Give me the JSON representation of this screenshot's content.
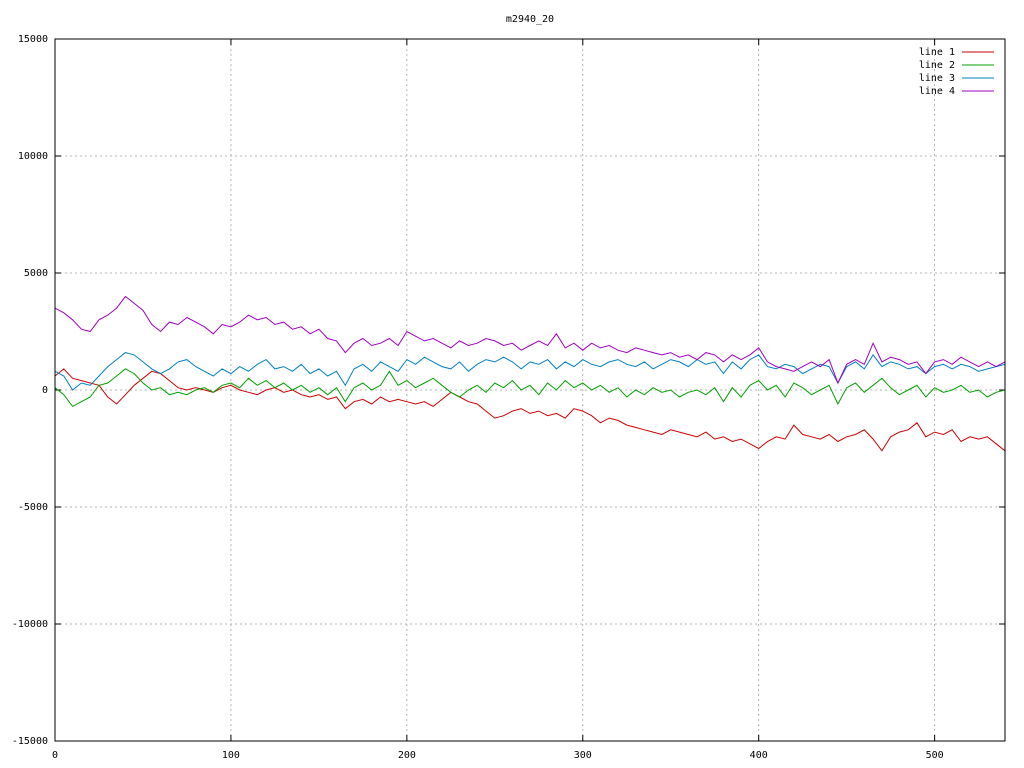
{
  "chart_data": {
    "type": "line",
    "title": "m2940_20",
    "xlim": [
      0,
      540
    ],
    "ylim": [
      -15000,
      15000
    ],
    "x_ticks": [
      0,
      100,
      200,
      300,
      400,
      500
    ],
    "y_ticks": [
      -15000,
      -10000,
      -5000,
      0,
      5000,
      10000,
      15000
    ],
    "x_tick_labels": [
      "0",
      "100",
      "200",
      "300",
      "400",
      "500"
    ],
    "y_tick_labels": [
      "-15000",
      "-10000",
      "-5000",
      "0",
      "5000",
      "10000",
      "15000"
    ],
    "grid": true,
    "legend_position": "top-right",
    "series": [
      {
        "name": "line 1",
        "color": "#cc0000",
        "x": [
          0,
          5,
          10,
          15,
          20,
          25,
          30,
          35,
          40,
          45,
          50,
          55,
          60,
          65,
          70,
          75,
          80,
          85,
          90,
          95,
          100,
          105,
          110,
          115,
          120,
          125,
          130,
          135,
          140,
          145,
          150,
          155,
          160,
          165,
          170,
          175,
          180,
          185,
          190,
          195,
          200,
          205,
          210,
          215,
          220,
          225,
          230,
          235,
          240,
          245,
          250,
          255,
          260,
          265,
          270,
          275,
          280,
          285,
          290,
          295,
          300,
          305,
          310,
          315,
          320,
          325,
          330,
          335,
          340,
          345,
          350,
          355,
          360,
          365,
          370,
          375,
          380,
          385,
          390,
          395,
          400,
          405,
          410,
          415,
          420,
          425,
          430,
          435,
          440,
          445,
          450,
          455,
          460,
          465,
          470,
          475,
          480,
          485,
          490,
          495,
          500,
          505,
          510,
          515,
          520,
          525,
          530,
          535,
          540
        ],
        "y": [
          600,
          900,
          500,
          400,
          300,
          200,
          -300,
          -600,
          -200,
          200,
          500,
          800,
          700,
          400,
          100,
          0,
          100,
          0,
          -100,
          100,
          200,
          0,
          -100,
          -200,
          0,
          100,
          -100,
          0,
          -200,
          -300,
          -200,
          -400,
          -300,
          -800,
          -500,
          -400,
          -600,
          -300,
          -500,
          -400,
          -500,
          -600,
          -500,
          -700,
          -400,
          -100,
          -300,
          -500,
          -600,
          -900,
          -1200,
          -1100,
          -900,
          -800,
          -1000,
          -900,
          -1100,
          -1000,
          -1200,
          -800,
          -900,
          -1100,
          -1400,
          -1200,
          -1300,
          -1500,
          -1600,
          -1700,
          -1800,
          -1900,
          -1700,
          -1800,
          -1900,
          -2000,
          -1800,
          -2100,
          -2000,
          -2200,
          -2100,
          -2300,
          -2500,
          -2200,
          -2000,
          -2100,
          -1500,
          -1900,
          -2000,
          -2100,
          -1900,
          -2200,
          -2000,
          -1900,
          -1700,
          -2100,
          -2600,
          -2000,
          -1800,
          -1700,
          -1400,
          -2000,
          -1800,
          -1900,
          -1700,
          -2200,
          -2000,
          -2100,
          -2000,
          -2300,
          -2600
        ]
      },
      {
        "name": "line 2",
        "color": "#00a000",
        "x": [
          0,
          5,
          10,
          15,
          20,
          25,
          30,
          35,
          40,
          45,
          50,
          55,
          60,
          65,
          70,
          75,
          80,
          85,
          90,
          95,
          100,
          105,
          110,
          115,
          120,
          125,
          130,
          135,
          140,
          145,
          150,
          155,
          160,
          165,
          170,
          175,
          180,
          185,
          190,
          195,
          200,
          205,
          210,
          215,
          220,
          225,
          230,
          235,
          240,
          245,
          250,
          255,
          260,
          265,
          270,
          275,
          280,
          285,
          290,
          295,
          300,
          305,
          310,
          315,
          320,
          325,
          330,
          335,
          340,
          345,
          350,
          355,
          360,
          365,
          370,
          375,
          380,
          385,
          390,
          395,
          400,
          405,
          410,
          415,
          420,
          425,
          430,
          435,
          440,
          445,
          450,
          455,
          460,
          465,
          470,
          475,
          480,
          485,
          490,
          495,
          500,
          505,
          510,
          515,
          520,
          525,
          530,
          535,
          540
        ],
        "y": [
          100,
          -200,
          -700,
          -500,
          -300,
          200,
          300,
          600,
          900,
          700,
          300,
          0,
          100,
          -200,
          -100,
          -200,
          0,
          100,
          -100,
          200,
          300,
          100,
          500,
          200,
          400,
          100,
          300,
          0,
          200,
          -100,
          100,
          -200,
          100,
          -500,
          100,
          300,
          0,
          200,
          800,
          200,
          400,
          100,
          300,
          500,
          200,
          -100,
          -300,
          0,
          200,
          -100,
          300,
          100,
          400,
          0,
          200,
          -200,
          300,
          0,
          400,
          100,
          300,
          0,
          200,
          -100,
          100,
          -300,
          0,
          -200,
          100,
          -100,
          0,
          -300,
          -100,
          0,
          -200,
          100,
          -500,
          100,
          -300,
          200,
          400,
          0,
          200,
          -300,
          300,
          100,
          -200,
          0,
          200,
          -600,
          100,
          300,
          -100,
          200,
          500,
          100,
          -200,
          0,
          200,
          -300,
          100,
          -100,
          0,
          200,
          -100,
          0,
          -300,
          -100,
          0
        ]
      },
      {
        "name": "line 3",
        "color": "#0080c0",
        "x": [
          0,
          5,
          10,
          15,
          20,
          25,
          30,
          35,
          40,
          45,
          50,
          55,
          60,
          65,
          70,
          75,
          80,
          85,
          90,
          95,
          100,
          105,
          110,
          115,
          120,
          125,
          130,
          135,
          140,
          145,
          150,
          155,
          160,
          165,
          170,
          175,
          180,
          185,
          190,
          195,
          200,
          205,
          210,
          215,
          220,
          225,
          230,
          235,
          240,
          245,
          250,
          255,
          260,
          265,
          270,
          275,
          280,
          285,
          290,
          295,
          300,
          305,
          310,
          315,
          320,
          325,
          330,
          335,
          340,
          345,
          350,
          355,
          360,
          365,
          370,
          375,
          380,
          385,
          390,
          395,
          400,
          405,
          410,
          415,
          420,
          425,
          430,
          435,
          440,
          445,
          450,
          455,
          460,
          465,
          470,
          475,
          480,
          485,
          490,
          495,
          500,
          505,
          510,
          515,
          520,
          525,
          530,
          535,
          540
        ],
        "y": [
          800,
          600,
          0,
          300,
          200,
          600,
          1000,
          1300,
          1600,
          1500,
          1200,
          900,
          700,
          900,
          1200,
          1300,
          1000,
          800,
          600,
          900,
          700,
          1000,
          800,
          1100,
          1300,
          900,
          1000,
          800,
          1100,
          700,
          900,
          600,
          800,
          200,
          900,
          1100,
          800,
          1200,
          1000,
          800,
          1300,
          1100,
          1400,
          1200,
          1000,
          900,
          1200,
          800,
          1100,
          1300,
          1200,
          1400,
          1200,
          900,
          1200,
          1100,
          1300,
          900,
          1200,
          1000,
          1300,
          1100,
          1000,
          1200,
          1300,
          1100,
          1000,
          1200,
          900,
          1100,
          1300,
          1200,
          1000,
          1300,
          1100,
          1200,
          700,
          1200,
          900,
          1300,
          1500,
          1000,
          900,
          1100,
          1000,
          700,
          900,
          1100,
          1000,
          300,
          1000,
          1200,
          900,
          1500,
          1000,
          1200,
          1100,
          900,
          1000,
          700,
          1000,
          1100,
          900,
          1100,
          1000,
          800,
          900,
          1000,
          1100
        ]
      },
      {
        "name": "line 4",
        "color": "#a000c0",
        "x": [
          0,
          5,
          10,
          15,
          20,
          25,
          30,
          35,
          40,
          45,
          50,
          55,
          60,
          65,
          70,
          75,
          80,
          85,
          90,
          95,
          100,
          105,
          110,
          115,
          120,
          125,
          130,
          135,
          140,
          145,
          150,
          155,
          160,
          165,
          170,
          175,
          180,
          185,
          190,
          195,
          200,
          205,
          210,
          215,
          220,
          225,
          230,
          235,
          240,
          245,
          250,
          255,
          260,
          265,
          270,
          275,
          280,
          285,
          290,
          295,
          300,
          305,
          310,
          315,
          320,
          325,
          330,
          335,
          340,
          345,
          350,
          355,
          360,
          365,
          370,
          375,
          380,
          385,
          390,
          395,
          400,
          405,
          410,
          415,
          420,
          425,
          430,
          435,
          440,
          445,
          450,
          455,
          460,
          465,
          470,
          475,
          480,
          485,
          490,
          495,
          500,
          505,
          510,
          515,
          520,
          525,
          530,
          535,
          540
        ],
        "y": [
          3500,
          3300,
          3000,
          2600,
          2500,
          3000,
          3200,
          3500,
          4000,
          3700,
          3400,
          2800,
          2500,
          2900,
          2800,
          3100,
          2900,
          2700,
          2400,
          2800,
          2700,
          2900,
          3200,
          3000,
          3100,
          2800,
          2900,
          2600,
          2700,
          2400,
          2600,
          2200,
          2100,
          1600,
          2000,
          2200,
          1900,
          2000,
          2200,
          1900,
          2500,
          2300,
          2100,
          2200,
          2000,
          1800,
          2100,
          1900,
          2000,
          2200,
          2100,
          1900,
          2000,
          1700,
          1900,
          2100,
          1900,
          2400,
          1800,
          2000,
          1700,
          2000,
          1800,
          1900,
          1700,
          1600,
          1800,
          1700,
          1600,
          1500,
          1600,
          1400,
          1500,
          1300,
          1600,
          1500,
          1200,
          1500,
          1300,
          1500,
          1800,
          1200,
          1000,
          900,
          800,
          1000,
          1200,
          1000,
          1300,
          300,
          1100,
          1300,
          1100,
          2000,
          1200,
          1400,
          1300,
          1100,
          1200,
          700,
          1200,
          1300,
          1100,
          1400,
          1200,
          1000,
          1200,
          1000,
          1200
        ]
      }
    ]
  }
}
